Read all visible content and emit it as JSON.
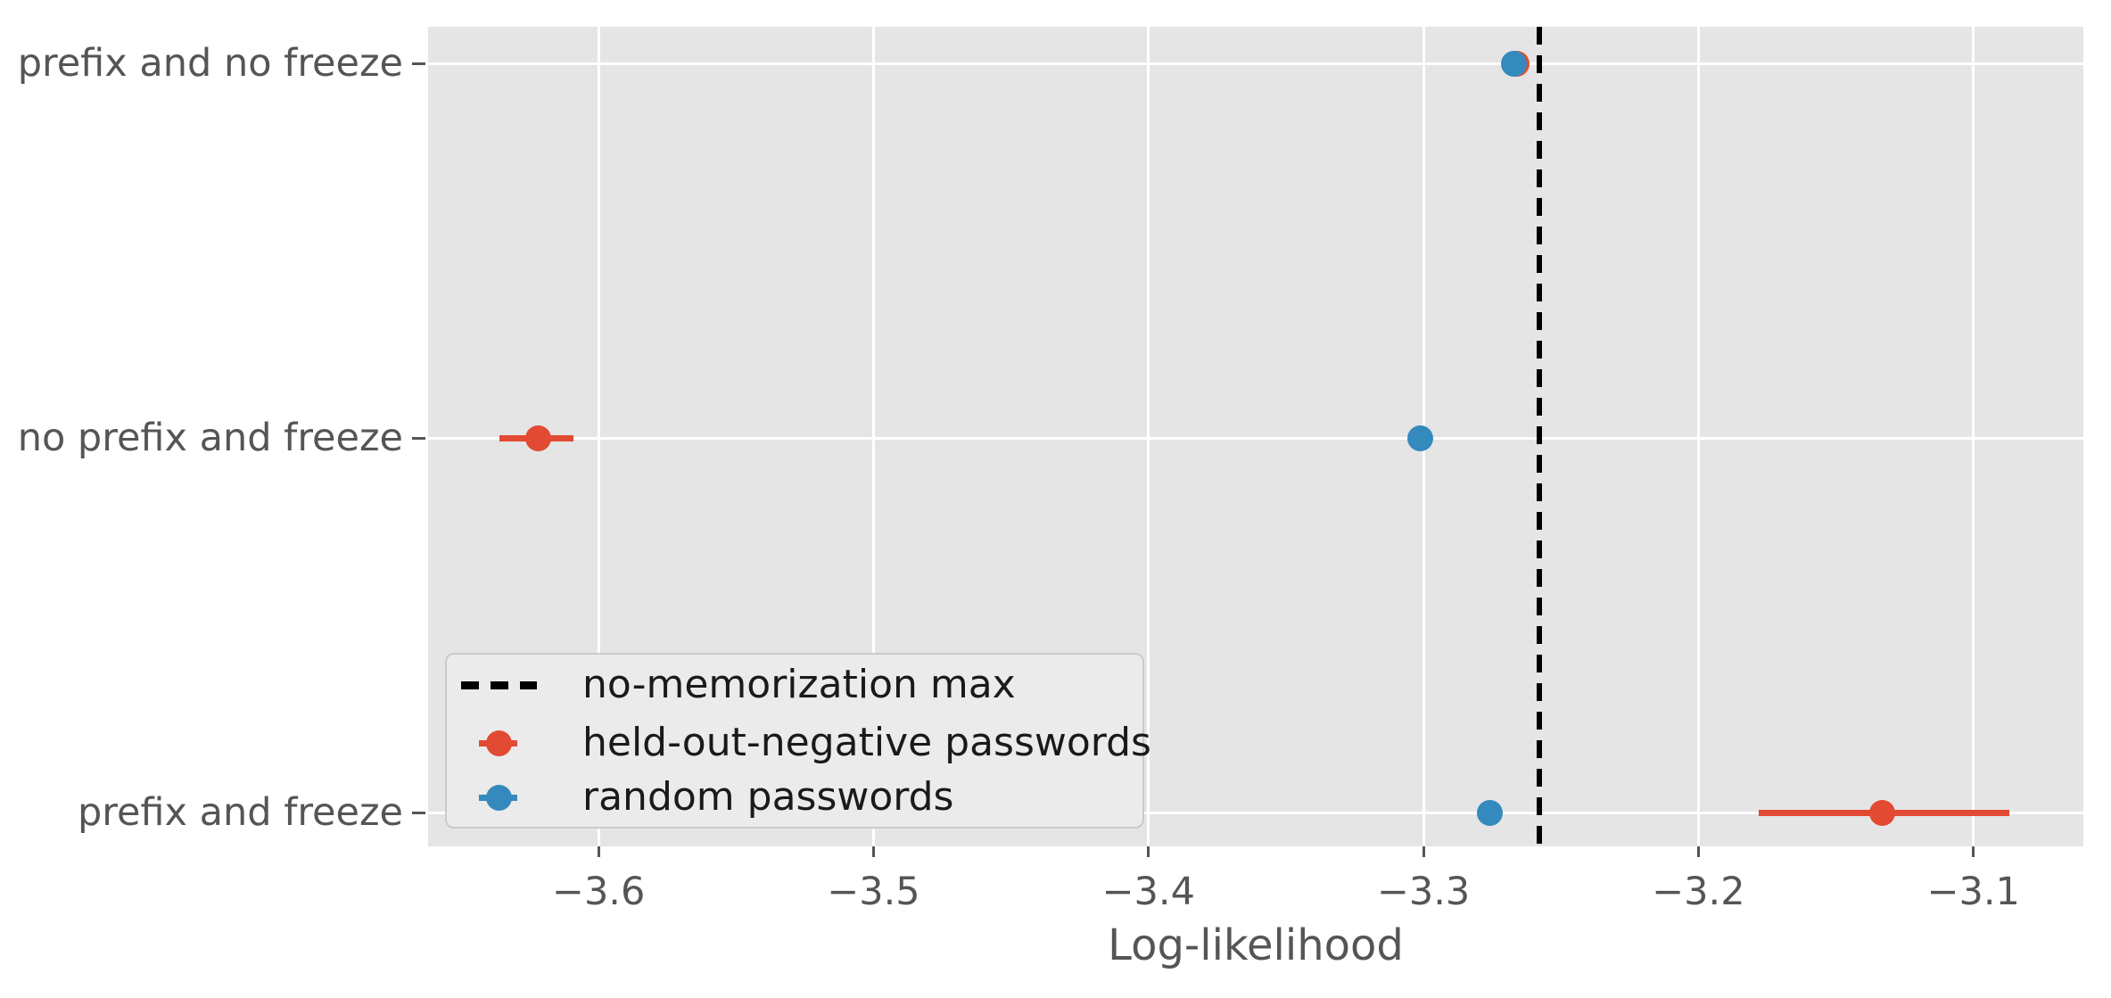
{
  "chart_data": {
    "type": "scatter",
    "title": "",
    "xlabel": "Log-likelihood",
    "ylabel": "",
    "xlim": [
      -3.662,
      -3.06
    ],
    "grid": true,
    "panel_background": "#E5E5E5",
    "gridline_color": "#ffffff",
    "tick_text_color": "#555555",
    "x_ticks": [
      {
        "value": -3.6,
        "label": "−3.6"
      },
      {
        "value": -3.5,
        "label": "−3.5"
      },
      {
        "value": -3.4,
        "label": "−3.4"
      },
      {
        "value": -3.3,
        "label": "−3.3"
      },
      {
        "value": -3.2,
        "label": "−3.2"
      },
      {
        "value": -3.1,
        "label": "−3.1"
      }
    ],
    "categories": [
      "prefix and no freeze",
      "no prefix and freeze",
      "prefix and freeze"
    ],
    "vline": {
      "x": -3.258,
      "label": "no-memorization max",
      "color": "#000000",
      "style": "dashed"
    },
    "series": [
      {
        "name": "held-out-negative passwords",
        "color": "#E24A33",
        "points": [
          {
            "category": "prefix and no freeze",
            "x": -3.266,
            "xerr": null
          },
          {
            "category": "no prefix and freeze",
            "x": -3.622,
            "xerr": [
              -3.636,
              -3.609
            ]
          },
          {
            "category": "prefix and freeze",
            "x": -3.133,
            "xerr": [
              -3.178,
              -3.087
            ]
          }
        ]
      },
      {
        "name": "random passwords",
        "color": "#348ABD",
        "points": [
          {
            "category": "prefix and no freeze",
            "x": -3.267,
            "xerr": null
          },
          {
            "category": "no prefix and freeze",
            "x": -3.301,
            "xerr": null
          },
          {
            "category": "prefix and freeze",
            "x": -3.276,
            "xerr": null
          }
        ]
      }
    ],
    "legend": {
      "position": "lower-left-inside",
      "entries": [
        {
          "label": "no-memorization max",
          "sample": "dashed-line",
          "color": "#000000"
        },
        {
          "label": "held-out-negative passwords",
          "sample": "errorbar-marker",
          "color": "#E24A33"
        },
        {
          "label": "random passwords",
          "sample": "errorbar-marker",
          "color": "#348ABD"
        }
      ]
    }
  }
}
